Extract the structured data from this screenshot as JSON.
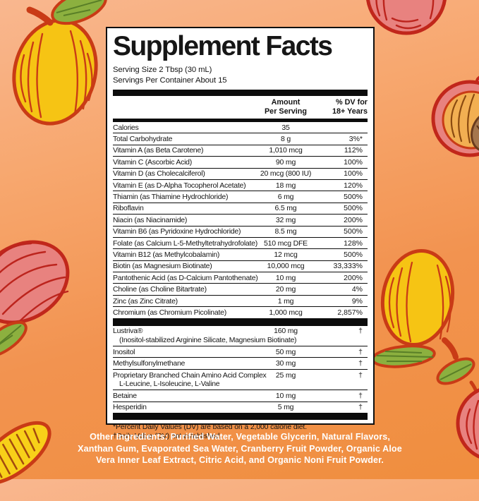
{
  "label": {
    "title": "Supplement Facts",
    "serving_size": "Serving Size 2 Tbsp (30 mL)",
    "servings_per_container": "Servings Per Container About 15",
    "col_amount_line1": "Amount",
    "col_amount_line2": "Per Serving",
    "col_dv_line1": "% DV for",
    "col_dv_line2": "18+ Years",
    "rows": [
      {
        "name": "Calories",
        "amount": "35",
        "dv": ""
      },
      {
        "name": "Total Carbohydrate",
        "amount": "8 g",
        "dv": "3%*"
      },
      {
        "name": "Vitamin A (as Beta Carotene)",
        "amount": "1,010 mcg",
        "dv": "112%"
      },
      {
        "name": "Vitamin C (Ascorbic Acid)",
        "amount": "90 mg",
        "dv": "100%"
      },
      {
        "name": "Vitamin D (as Cholecalciferol)",
        "amount": "20 mcg (800 IU)",
        "dv": "100%"
      },
      {
        "name": "Vitamin E (as D-Alpha Tocopherol Acetate)",
        "amount": "18 mg",
        "dv": "120%"
      },
      {
        "name": "Thiamin (as Thiamine Hydrochloride)",
        "amount": "6 mg",
        "dv": "500%"
      },
      {
        "name": "Riboflavin",
        "amount": "6.5 mg",
        "dv": "500%"
      },
      {
        "name": "Niacin (as Niacinamide)",
        "amount": "32 mg",
        "dv": "200%"
      },
      {
        "name": "Vitamin B6 (as Pyridoxine Hydrochloride)",
        "amount": "8.5 mg",
        "dv": "500%"
      },
      {
        "name": "Folate (as Calcium L-5-Methyltetrahydrofolate)",
        "amount": "510 mcg DFE",
        "dv": "128%"
      },
      {
        "name": "Vitamin B12 (as Methylcobalamin)",
        "amount": "12 mcg",
        "dv": "500%"
      },
      {
        "name": "Biotin (as Magnesium Biotinate)",
        "amount": "10,000 mcg",
        "dv": "33,333%"
      },
      {
        "name": "Pantothenic Acid (as D-Calcium Pantothenate)",
        "amount": "10 mg",
        "dv": "200%"
      },
      {
        "name": "Choline (as Choline Bitartrate)",
        "amount": "20 mg",
        "dv": "4%"
      },
      {
        "name": "Zinc (as Zinc Citrate)",
        "amount": "1 mg",
        "dv": "9%"
      },
      {
        "name": "Chromium (as Chromium Picolinate)",
        "amount": "1,000 mcg",
        "dv": "2,857%"
      },
      {
        "divider": true
      },
      {
        "name": "Lustriva®",
        "amount": "160 mg",
        "dv": "†",
        "sub": "(Inositol-stabilized Arginine Silicate, Magnesium Biotinate)"
      },
      {
        "name": "Inositol",
        "amount": "50 mg",
        "dv": "†"
      },
      {
        "name": "Methylsulfonylmethane",
        "amount": "30 mg",
        "dv": "†"
      },
      {
        "name": "Proprietary Branched Chain Amino Acid Complex",
        "amount": "25 mg",
        "dv": "†",
        "sub": "L-Leucine, L-Isoleucine, L-Valine"
      },
      {
        "name": "Betaine",
        "amount": "10 mg",
        "dv": "†"
      },
      {
        "name": "Hesperidin",
        "amount": "5 mg",
        "dv": "†"
      },
      {
        "divider": true
      }
    ],
    "footnote_dv": "*Percent Daily Values (DV) are based on a 2,000 calorie diet.",
    "footnote_dagger": "†Daily Value (DV) not established."
  },
  "other_ingredients": "Other Ingredients: Purified Water, Vegetable Glycerin, Natural Flavors, Xanthan Gum, Evaporated Sea Water, Cranberry Fruit Powder, Organic Aloe Vera Inner Leaf Extract, Citric Acid, and Organic Noni Fruit Powder.",
  "illustrations": [
    "mango-top-left",
    "peach-top-right",
    "peach-half-right",
    "peach-left",
    "mango-right",
    "peach-bottom-right",
    "mango-slice-bottom-left"
  ],
  "palette": {
    "background_top": "#f9b78f",
    "background_bottom": "#f08e3e",
    "label_background": "#ffffff",
    "label_border": "#101010",
    "mango_yellow": "#f6c414",
    "fruit_outline_red": "#c93b16",
    "peach_pink": "#e8827f",
    "peach_outline": "#c1271b",
    "peach_flesh": "#f2af52",
    "pit_brown": "#a5764d",
    "leaf_green": "#8cb03f",
    "other_ingredients_text": "#ffffff"
  }
}
